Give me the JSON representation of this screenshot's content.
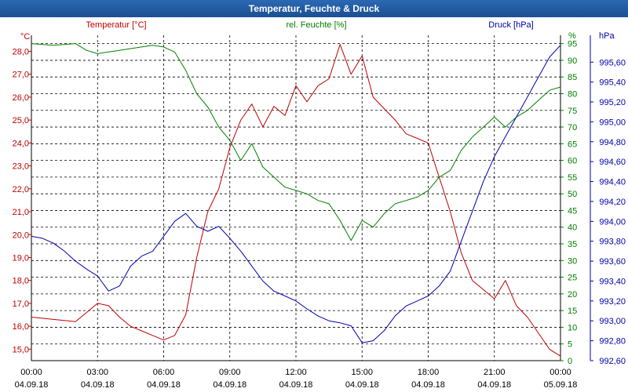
{
  "window": {
    "title": "Temperatur, Feuchte & Druck"
  },
  "colors": {
    "temperature": "#c00000",
    "humidity": "#008000",
    "pressure": "#0000aa",
    "grid": "#000000",
    "title_bg": "#1f5aa0"
  },
  "chart_data": {
    "type": "line",
    "title": "Temperatur, Feuchte & Druck",
    "grid": true,
    "x_ticks": [
      {
        "time": "00:00",
        "date": "04.09.18"
      },
      {
        "time": "03:00",
        "date": "04.09.18"
      },
      {
        "time": "06:00",
        "date": "04.09.18"
      },
      {
        "time": "09:00",
        "date": "04.09.18"
      },
      {
        "time": "12:00",
        "date": "04.09.18"
      },
      {
        "time": "15:00",
        "date": "04.09.18"
      },
      {
        "time": "18:00",
        "date": "04.09.18"
      },
      {
        "time": "21:00",
        "date": "04.09.18"
      },
      {
        "time": "00:00",
        "date": "05.09.18"
      }
    ],
    "axes": {
      "temperature": {
        "unit": "°C",
        "color": "#c00000",
        "range": [
          14.5,
          28.7
        ],
        "ticks": [
          "15,0",
          "16,0",
          "17,0",
          "18,0",
          "19,0",
          "20,0",
          "21,0",
          "22,0",
          "23,0",
          "24,0",
          "25,0",
          "26,0",
          "27,0",
          "28,0"
        ]
      },
      "humidity": {
        "unit": "%",
        "color": "#008000",
        "range": [
          0,
          97.5
        ],
        "ticks": [
          "0",
          "5",
          "10",
          "15",
          "20",
          "25",
          "30",
          "35",
          "40",
          "45",
          "50",
          "55",
          "60",
          "65",
          "70",
          "75",
          "80",
          "85",
          "90",
          "95"
        ]
      },
      "pressure": {
        "unit": "hPa",
        "color": "#0000aa",
        "range": [
          992.6,
          995.87
        ],
        "ticks": [
          "992,60",
          "992,80",
          "993,00",
          "993,20",
          "993,40",
          "993,60",
          "993,80",
          "994,00",
          "994,20",
          "994,40",
          "994,60",
          "994,80",
          "995,00",
          "995,20",
          "995,40",
          "995,60"
        ]
      }
    },
    "series": [
      {
        "name": "Temperatur [°C]",
        "axis": "temperature",
        "color": "#c00000",
        "x_hours": [
          0,
          1,
          2,
          2.5,
          3,
          3.5,
          4,
          4.5,
          5,
          5.5,
          6,
          6.5,
          7,
          7.5,
          8,
          8.5,
          9,
          9.5,
          10,
          10.5,
          11,
          11.5,
          12,
          12.5,
          13,
          13.5,
          14,
          14.5,
          15,
          15.5,
          16,
          16.5,
          17,
          17.5,
          18,
          18.5,
          19,
          19.5,
          20,
          20.5,
          21,
          21.5,
          22,
          22.5,
          23,
          23.5,
          24
        ],
        "values": [
          16.4,
          16.3,
          16.2,
          16.6,
          17.0,
          16.9,
          16.4,
          16.0,
          15.8,
          15.6,
          15.4,
          15.6,
          16.5,
          19.0,
          21.0,
          22.0,
          23.8,
          25.0,
          25.7,
          24.7,
          25.6,
          25.2,
          26.5,
          25.8,
          26.5,
          26.8,
          28.3,
          27.0,
          27.8,
          26.0,
          25.5,
          25.0,
          24.4,
          24.2,
          24.0,
          22.5,
          21.0,
          19.2,
          18.0,
          17.6,
          17.2,
          18.0,
          16.9,
          16.4,
          15.7,
          15.0,
          14.7
        ]
      },
      {
        "name": "rel. Feuchte [%]",
        "axis": "humidity",
        "color": "#008000",
        "x_hours": [
          0,
          1,
          2,
          2.5,
          3,
          3.5,
          4,
          4.5,
          5,
          5.5,
          6,
          6.5,
          7,
          7.5,
          8,
          8.5,
          9,
          9.5,
          10,
          10.5,
          11,
          11.5,
          12,
          12.5,
          13,
          13.5,
          14,
          14.5,
          15,
          15.5,
          16,
          16.5,
          17,
          17.5,
          18,
          18.5,
          19,
          19.5,
          20,
          20.5,
          21,
          21.5,
          22,
          22.5,
          23,
          23.5,
          24
        ],
        "values": [
          95,
          94.5,
          95,
          93,
          92,
          92.5,
          93,
          93.5,
          94,
          94.5,
          94,
          92.5,
          87,
          80,
          76,
          70,
          66,
          60,
          65,
          58,
          55,
          52,
          51,
          50,
          48,
          47,
          42,
          36,
          42,
          40,
          44,
          47,
          48,
          49,
          51,
          55,
          57,
          63,
          67,
          70,
          73,
          70,
          73,
          75,
          78,
          81,
          82
        ]
      },
      {
        "name": "Druck [hPa]",
        "axis": "pressure",
        "color": "#0000aa",
        "x_hours": [
          0,
          0.5,
          1,
          1.5,
          2,
          2.5,
          3,
          3.5,
          4,
          4.5,
          5,
          5.5,
          6,
          6.5,
          7,
          7.5,
          8,
          8.5,
          9,
          9.5,
          10,
          10.5,
          11,
          11.5,
          12,
          12.5,
          13,
          13.5,
          14,
          14.5,
          15,
          15.5,
          16,
          16.5,
          17,
          17.5,
          18,
          18.5,
          19,
          19.5,
          20,
          20.5,
          21,
          21.5,
          22,
          22.5,
          23,
          23.5,
          24
        ],
        "values": [
          993.85,
          993.83,
          993.78,
          993.7,
          993.6,
          993.52,
          993.45,
          993.3,
          993.35,
          993.55,
          993.65,
          993.7,
          993.85,
          994.0,
          994.08,
          993.95,
          993.9,
          993.95,
          993.83,
          993.7,
          993.55,
          993.4,
          993.3,
          993.25,
          993.2,
          993.12,
          993.05,
          993.0,
          992.98,
          992.95,
          992.78,
          992.8,
          992.9,
          993.05,
          993.15,
          993.2,
          993.25,
          993.35,
          993.5,
          993.8,
          994.1,
          994.4,
          994.65,
          994.85,
          995.05,
          995.25,
          995.45,
          995.65,
          995.77
        ]
      }
    ]
  }
}
